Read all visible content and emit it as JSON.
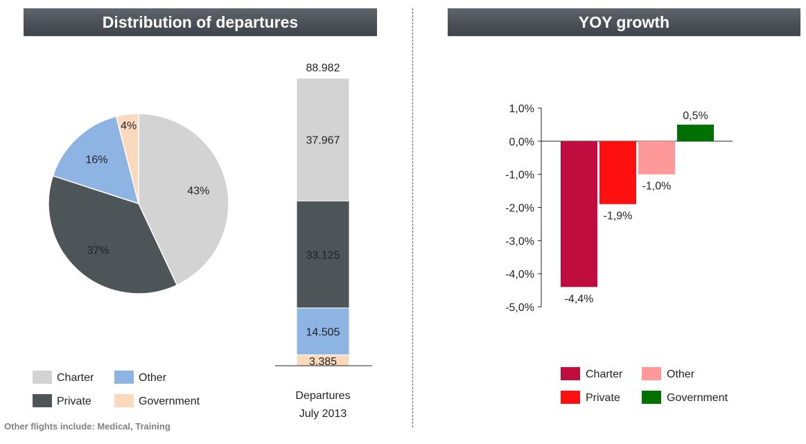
{
  "headers": {
    "left": "Distribution  of departures",
    "right": "YOY growth"
  },
  "footnote": "Other flights include: Medical,  Training",
  "colors": {
    "charter_grey": "#d3d3d3",
    "private_dark": "#4d5559",
    "other_blue": "#8eb4e3",
    "government_peach": "#fad9bc",
    "yoy_charter": "#c00d40",
    "yoy_private": "#fe1010",
    "yoy_other": "#ff9999",
    "yoy_government": "#007000"
  },
  "chart_data": [
    {
      "type": "pie",
      "slices": [
        {
          "name": "Charter",
          "value": 43,
          "label": "43%"
        },
        {
          "name": "Private",
          "value": 37,
          "label": "37%"
        },
        {
          "name": "Other",
          "value": 16,
          "label": "16%"
        },
        {
          "name": "Government",
          "value": 4,
          "label": "4%"
        }
      ],
      "legend": {
        "placement": "bottom-left",
        "items": [
          "Charter",
          "Other",
          "Private",
          "Government"
        ]
      }
    },
    {
      "type": "bar",
      "stacked": true,
      "categories": [
        "Departures July 2013"
      ],
      "category_lines": [
        "Departures",
        "July 2013"
      ],
      "total_label": "88.982",
      "total": 88982,
      "series": [
        {
          "name": "Government",
          "value": 3385,
          "label": "3.385"
        },
        {
          "name": "Other",
          "value": 14505,
          "label": "14.505"
        },
        {
          "name": "Private",
          "value": 33125,
          "label": "33.125"
        },
        {
          "name": "Charter",
          "value": 37967,
          "label": "37.967"
        }
      ]
    },
    {
      "type": "bar",
      "categories": [
        "Charter",
        "Private",
        "Other",
        "Government"
      ],
      "values": [
        -4.4,
        -1.9,
        -1.0,
        0.5
      ],
      "value_labels": [
        "-4,4%",
        "-1,9%",
        "-1,0%",
        "0,5%"
      ],
      "ylim": [
        -5.0,
        1.0
      ],
      "yticks": [
        "1,0%",
        "0,0%",
        "-1,0%",
        "-2,0%",
        "-3,0%",
        "-4,0%",
        "-5,0%"
      ],
      "legend": {
        "placement": "bottom",
        "items": [
          "Charter",
          "Other",
          "Private",
          "Government"
        ]
      }
    }
  ]
}
